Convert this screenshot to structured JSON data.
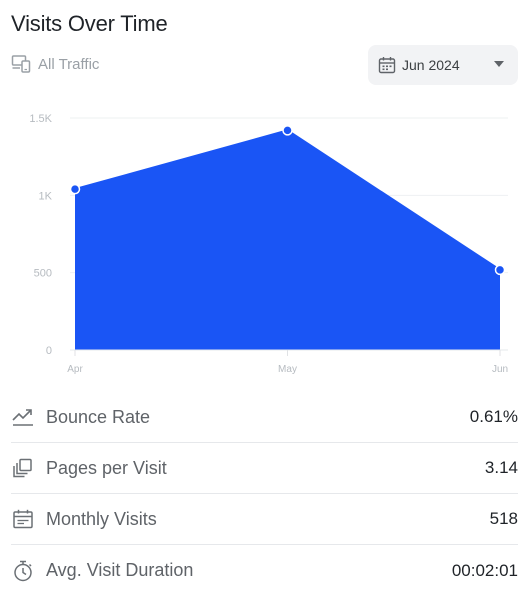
{
  "header": {
    "title": "Visits Over Time"
  },
  "filters": {
    "traffic_label": "All Traffic",
    "traffic_icon": "devices-icon",
    "date_label": "Jun 2024",
    "date_icon": "calendar-icon"
  },
  "chart_data": {
    "type": "area",
    "x": [
      "Apr",
      "May",
      "Jun"
    ],
    "values": [
      1040,
      1420,
      518
    ],
    "ylim": [
      0,
      1500
    ],
    "y_ticks": [
      0,
      500,
      1000,
      1500
    ],
    "y_tick_labels": [
      "0",
      "500",
      "1K",
      "1.5K"
    ],
    "grid": true,
    "color": "#1a55f5"
  },
  "metrics": [
    {
      "label": "Bounce Rate",
      "value": "0.61%",
      "icon": "trend-up-icon"
    },
    {
      "label": "Pages per Visit",
      "value": "3.14",
      "icon": "pages-icon"
    },
    {
      "label": "Monthly Visits",
      "value": "518",
      "icon": "calendar-icon"
    },
    {
      "label": "Avg. Visit Duration",
      "value": "00:02:01",
      "icon": "timer-icon"
    }
  ]
}
